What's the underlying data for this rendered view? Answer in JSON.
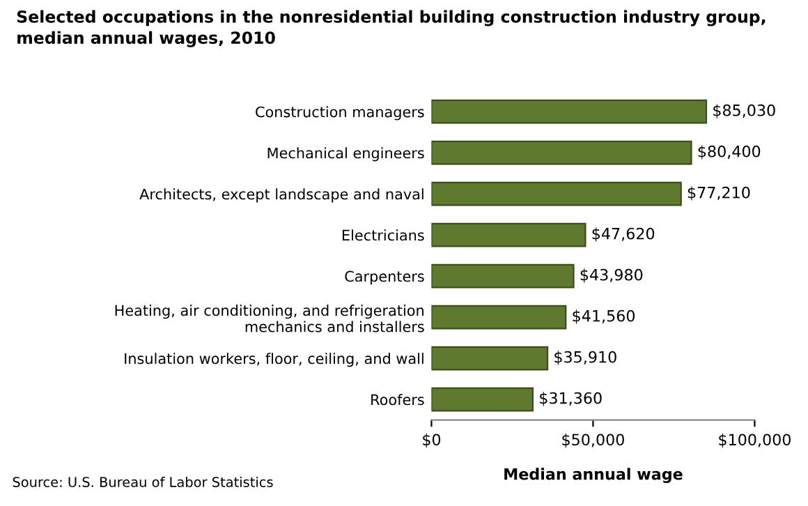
{
  "chart_data": {
    "type": "bar",
    "orientation": "horizontal",
    "title": "Selected occupations in the nonresidential building construction industry group,\nmedian annual wages, 2010",
    "xlabel": "Median annual wage",
    "categories": [
      "Construction managers",
      "Mechanical engineers",
      "Architects, except landscape and naval",
      "Electricians",
      "Carpenters",
      "Heating, air conditioning, and refrigeration\nmechanics and installers",
      "Insulation workers, floor, ceiling, and wall",
      "Roofers"
    ],
    "values": [
      85030,
      80400,
      77210,
      47620,
      43980,
      41560,
      35910,
      31360
    ],
    "value_labels": [
      "$85,030",
      "$80,400",
      "$77,210",
      "$47,620",
      "$43,980",
      "$41,560",
      "$35,910",
      "$31,360"
    ],
    "color": "#5f7a2e",
    "xlim": [
      0,
      100000
    ],
    "xticks": [
      {
        "value": 0,
        "label": "$0"
      },
      {
        "value": 50000,
        "label": "$50,000"
      },
      {
        "value": 100000,
        "label": "$100,000"
      }
    ],
    "grid": false,
    "legend": false,
    "annotations": [
      "Source: U.S. Bureau of Labor Statistics"
    ]
  }
}
